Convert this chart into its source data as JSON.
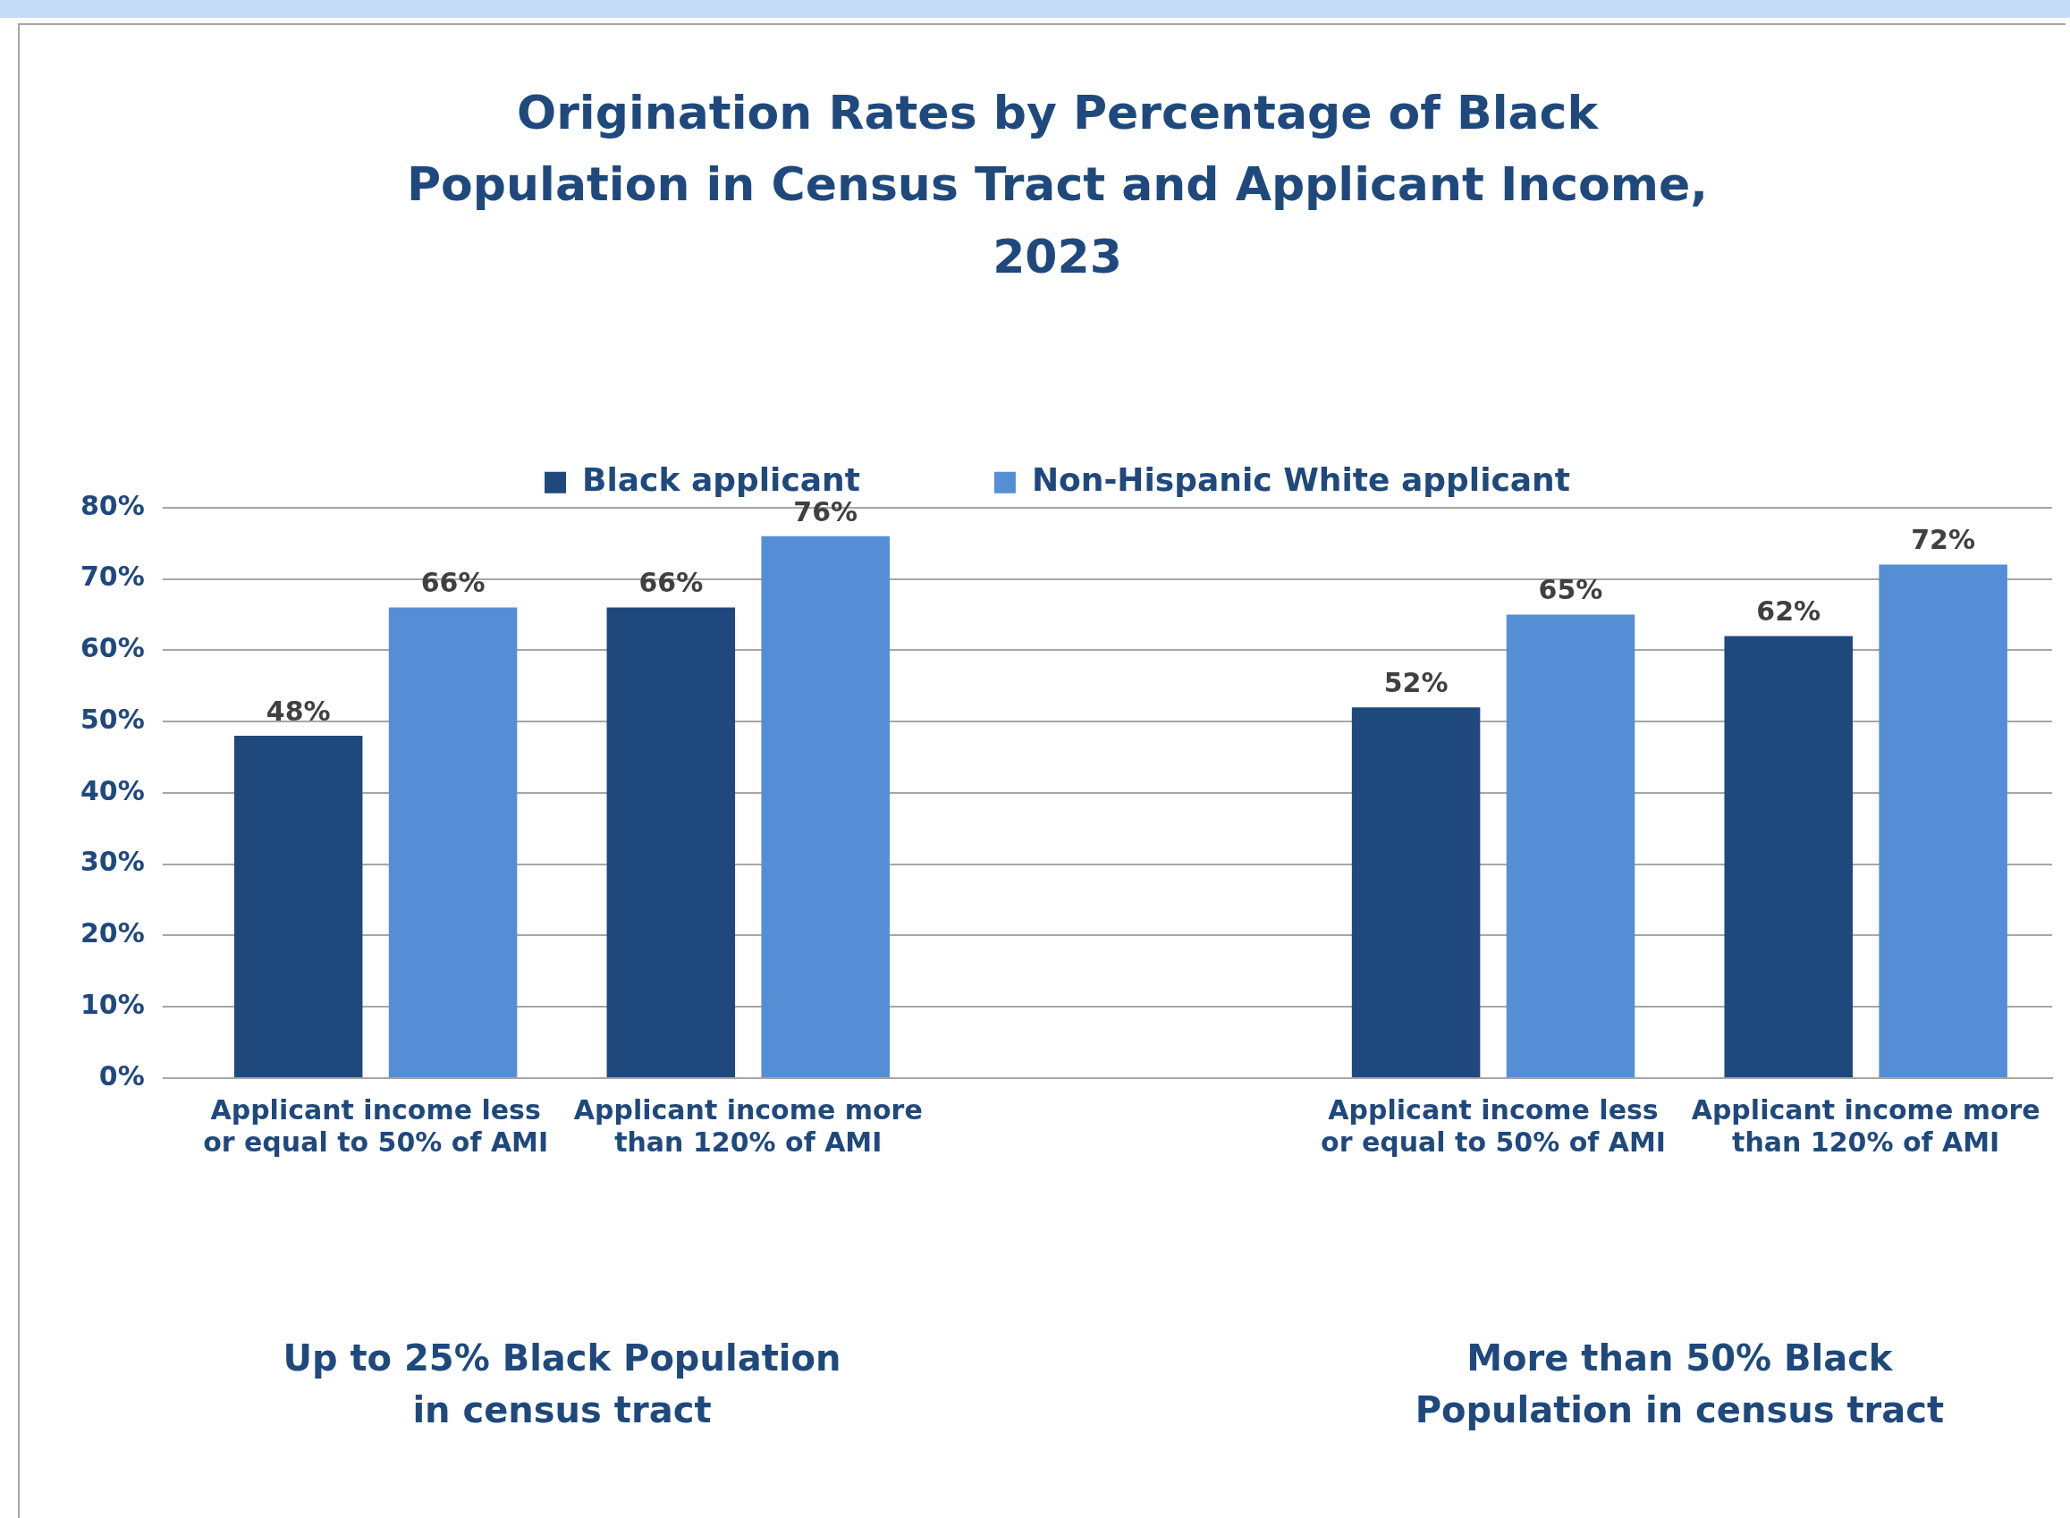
{
  "chart_data": {
    "type": "bar",
    "title": "Origination Rates by Percentage of Black Population in Census Tract and Applicant Income, 2023",
    "categories": [
      "Applicant income less or equal to 50% of AMI",
      "Applicant income more than 120% of AMI",
      null,
      "Applicant income less or equal to 50% of AMI",
      "Applicant income more than 120% of AMI"
    ],
    "series": [
      {
        "name": "Black applicant",
        "color": "#1f497d",
        "values": [
          48,
          66,
          null,
          52,
          62
        ],
        "value_labels": [
          "48%",
          "66%",
          null,
          "52%",
          "62%"
        ]
      },
      {
        "name": "Non-Hispanic White applicant",
        "color": "#558ed5",
        "values": [
          66,
          76,
          null,
          65,
          72
        ],
        "value_labels": [
          "66%",
          "76%",
          null,
          "65%",
          "72%"
        ]
      }
    ],
    "ylim": [
      0,
      80
    ],
    "yticks": [
      {
        "value": 0,
        "label": "0%"
      },
      {
        "value": 10,
        "label": "10%"
      },
      {
        "value": 20,
        "label": "20%"
      },
      {
        "value": 30,
        "label": "30%"
      },
      {
        "value": 40,
        "label": "40%"
      },
      {
        "value": 50,
        "label": "50%"
      },
      {
        "value": 60,
        "label": "60%"
      },
      {
        "value": 70,
        "label": "70%"
      },
      {
        "value": 80,
        "label": "80%"
      }
    ],
    "grid": "y",
    "legend": "top",
    "annotations": [
      "Up to 25% Black Population in census tract",
      "More than 50% Black Population in census tract"
    ]
  }
}
